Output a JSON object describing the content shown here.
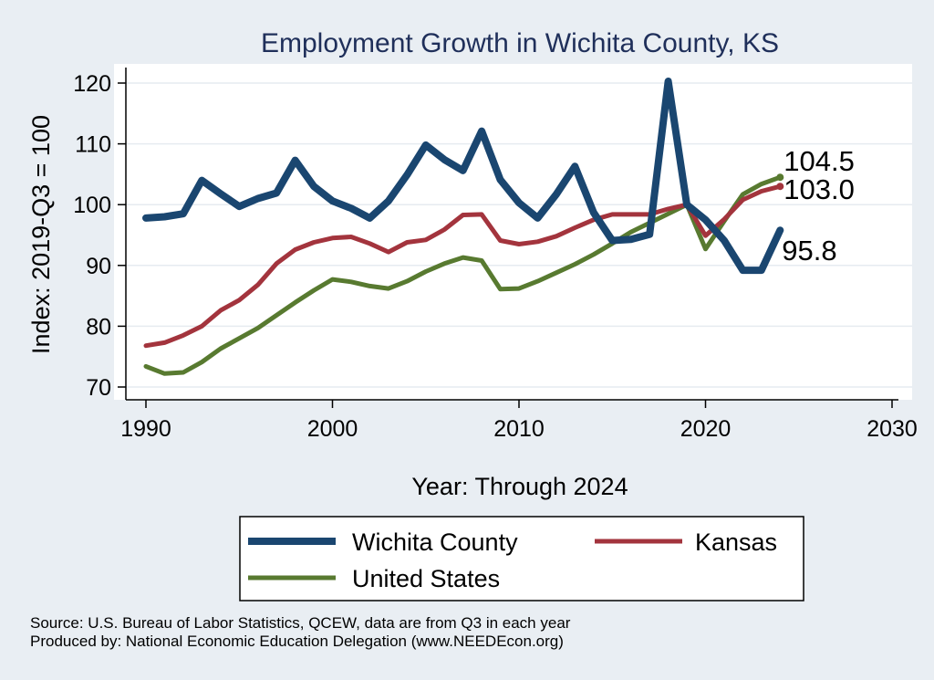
{
  "chart_data": {
    "type": "line",
    "title": "Employment Growth in Wichita County, KS",
    "xlabel": "Year: Through 2024",
    "ylabel": "Index: 2019-Q3 = 100",
    "xlim": [
      1990,
      2030
    ],
    "ylim": [
      70,
      120
    ],
    "xticks": [
      "1990",
      "2000",
      "2010",
      "2020",
      "2030"
    ],
    "yticks": [
      "70",
      "80",
      "90",
      "100",
      "110",
      "120"
    ],
    "grid": true,
    "legend_position": "bottom",
    "x": [
      1990,
      1991,
      1992,
      1993,
      1994,
      1995,
      1996,
      1997,
      1998,
      1999,
      2000,
      2001,
      2002,
      2003,
      2004,
      2005,
      2006,
      2007,
      2008,
      2009,
      2010,
      2011,
      2012,
      2013,
      2014,
      2015,
      2016,
      2017,
      2018,
      2019,
      2020,
      2021,
      2022,
      2023,
      2024
    ],
    "series": [
      {
        "name": "Wichita  County",
        "color": "#1a4670",
        "values": [
          97.8,
          98.0,
          98.5,
          104.0,
          101.8,
          99.7,
          101.0,
          101.9,
          107.3,
          103.0,
          100.6,
          99.4,
          97.8,
          100.6,
          104.9,
          109.8,
          107.4,
          105.6,
          112.1,
          104.1,
          100.3,
          97.8,
          101.7,
          106.3,
          98.7,
          94.1,
          94.3,
          95.1,
          120.3,
          100.0,
          97.5,
          94.1,
          89.2,
          89.2,
          95.8
        ],
        "end_label": "95.8"
      },
      {
        "name": "Kansas",
        "color": "#a3343d",
        "values": [
          76.8,
          77.3,
          78.5,
          80.0,
          82.6,
          84.3,
          86.8,
          90.3,
          92.6,
          93.8,
          94.5,
          94.7,
          93.6,
          92.2,
          93.8,
          94.2,
          95.9,
          98.3,
          98.4,
          94.1,
          93.5,
          93.9,
          94.8,
          96.2,
          97.5,
          98.4,
          98.4,
          98.4,
          99.3,
          100.0,
          94.9,
          97.6,
          100.8,
          102.2,
          103.0
        ],
        "end_label": "103.0"
      },
      {
        "name": "United States",
        "color": "#587a30",
        "values": [
          73.4,
          72.2,
          72.4,
          74.1,
          76.3,
          78.0,
          79.7,
          81.8,
          83.9,
          85.9,
          87.7,
          87.3,
          86.6,
          86.2,
          87.4,
          89.0,
          90.3,
          91.3,
          90.8,
          86.1,
          86.2,
          87.4,
          88.8,
          90.2,
          91.8,
          93.6,
          95.5,
          97.0,
          98.5,
          100.0,
          92.7,
          97.3,
          101.7,
          103.4,
          104.5
        ],
        "end_label": "104.5"
      }
    ]
  },
  "source_note": "Source: U.S. Bureau of Labor Statistics, QCEW, data are from Q3 in each year",
  "producer_note": "Produced by: National Economic Education Delegation (www.NEEDEcon.org)"
}
